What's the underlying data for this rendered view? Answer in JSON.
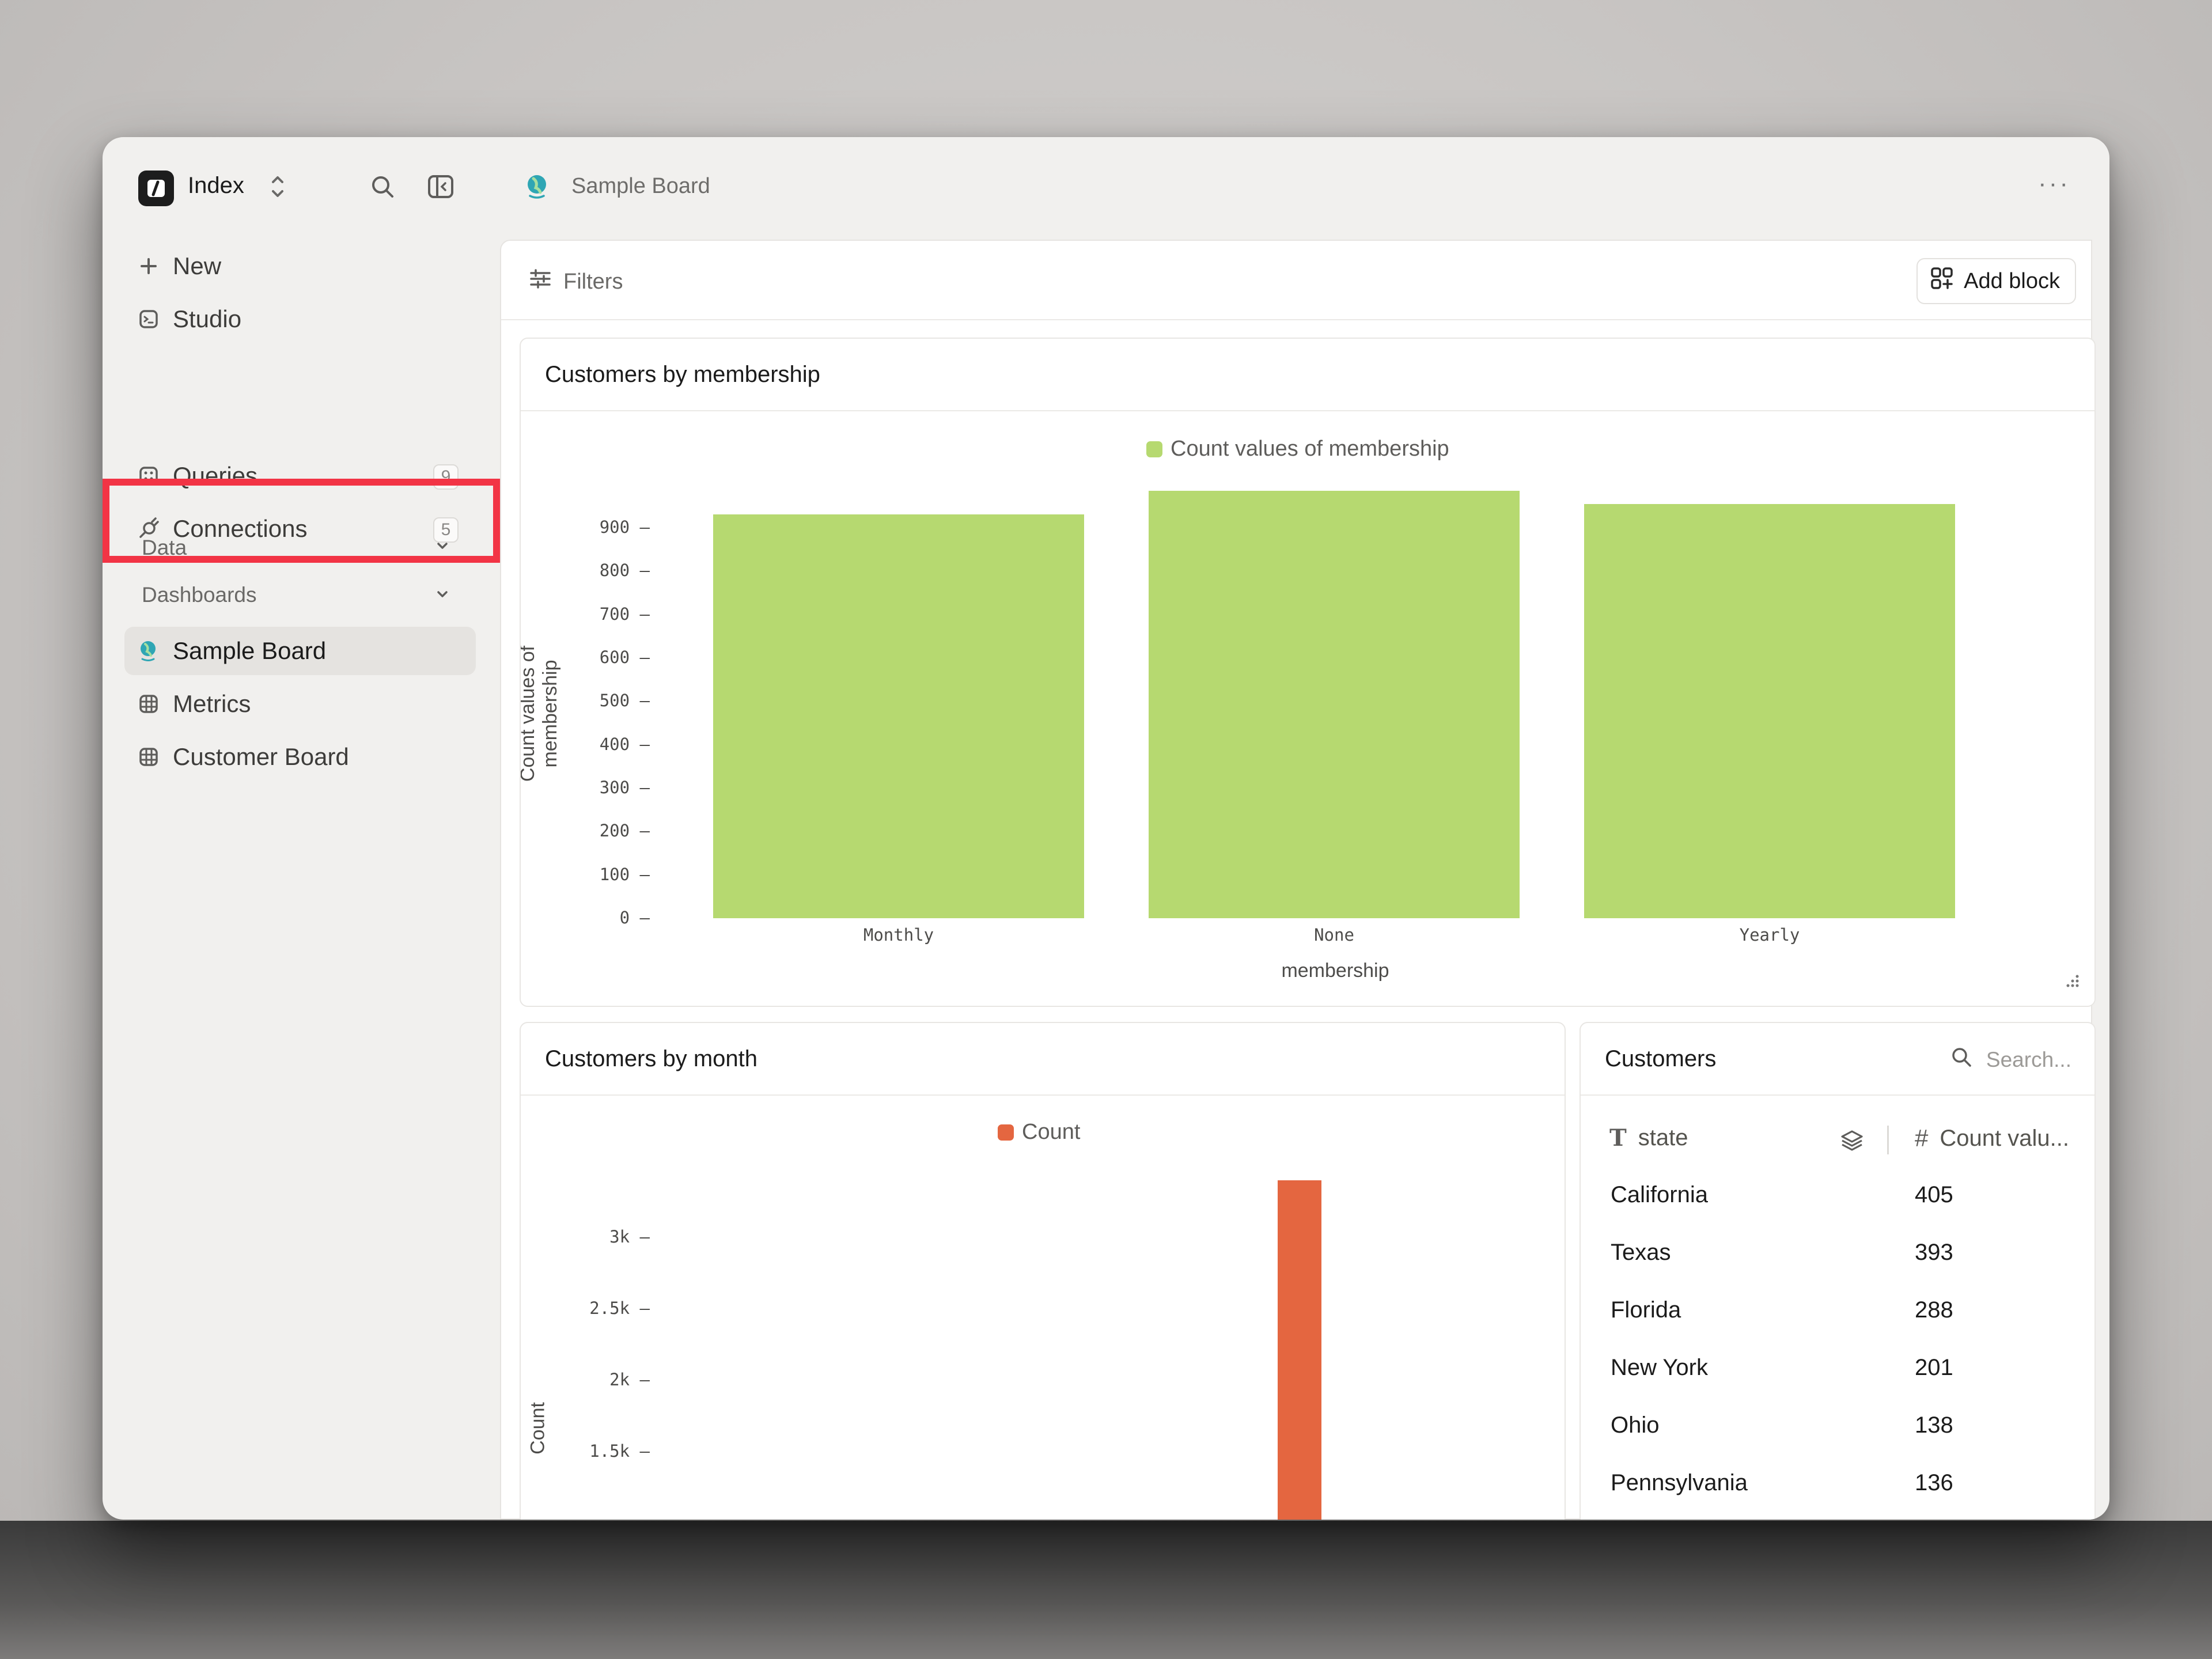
{
  "app": {
    "name": "Index"
  },
  "header": {
    "board_title": "Sample Board",
    "more_label": "···"
  },
  "sidebar": {
    "new_label": "New",
    "studio_label": "Studio",
    "data_section": "Data",
    "queries_label": "Queries",
    "queries_count": "9",
    "connections_label": "Connections",
    "connections_count": "5",
    "dashboards_section": "Dashboards",
    "dashboards": [
      "Sample Board",
      "Metrics",
      "Customer Board"
    ]
  },
  "toolbar": {
    "filters_label": "Filters",
    "add_block_label": "Add block"
  },
  "cards": {
    "membership": {
      "title": "Customers by membership",
      "legend": "Count values of membership",
      "ylabel": "Count values of membership",
      "xlabel": "membership"
    },
    "month": {
      "title": "Customers by month",
      "legend": "Count",
      "ylabel": "Count"
    },
    "customers": {
      "title": "Customers",
      "search_placeholder": "Search...",
      "col_state": "state",
      "col_count": "Count valu...",
      "rows": [
        {
          "state": "California",
          "count": "405"
        },
        {
          "state": "Texas",
          "count": "393"
        },
        {
          "state": "Florida",
          "count": "288"
        },
        {
          "state": "New York",
          "count": "201"
        },
        {
          "state": "Ohio",
          "count": "138"
        },
        {
          "state": "Pennsylvania",
          "count": "136"
        }
      ]
    }
  },
  "colors": {
    "green": "#b6d970",
    "orange": "#e46640",
    "highlight": "#f23445"
  },
  "chart_data": [
    {
      "type": "bar",
      "title": "Customers by membership",
      "categories": [
        "Monthly",
        "None",
        "Yearly"
      ],
      "series": [
        {
          "name": "Count values of membership",
          "values": [
            930,
            985,
            955
          ]
        }
      ],
      "xlabel": "membership",
      "ylabel": "Count values of membership",
      "yticks": [
        "0",
        "100",
        "200",
        "300",
        "400",
        "500",
        "600",
        "700",
        "800",
        "900"
      ],
      "ylim": [
        0,
        985
      ]
    },
    {
      "type": "bar",
      "title": "Customers by month",
      "series": [
        {
          "name": "Count",
          "values": [
            3400
          ]
        }
      ],
      "ylabel": "Count",
      "yticks": [
        "1.5k",
        "2k",
        "2.5k",
        "3k"
      ]
    }
  ]
}
